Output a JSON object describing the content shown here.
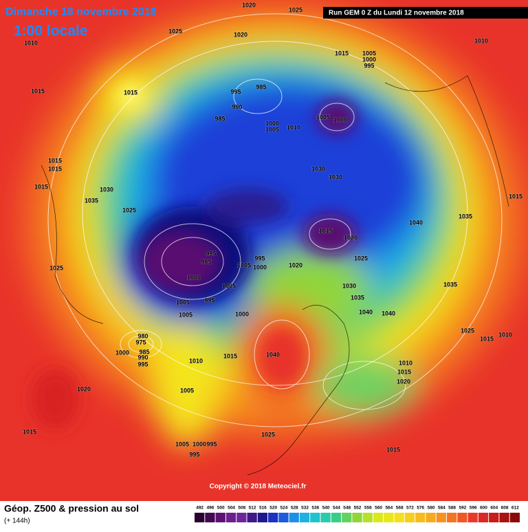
{
  "header": {
    "title": "Dimanche 18 novembre 2018",
    "time": "1:00 locale",
    "run": "Run GEM 0 Z du Lundi 12 novembre 2018"
  },
  "copyright": "Copyright © 2018 Meteociel.fr",
  "legend": {
    "title": "Géop. Z500 & pression au sol",
    "lead": "(+ 144h)",
    "ticks": [
      492,
      496,
      500,
      504,
      508,
      512,
      516,
      520,
      524,
      528,
      532,
      536,
      540,
      544,
      548,
      552,
      556,
      560,
      564,
      568,
      572,
      576,
      580,
      584,
      588,
      592,
      596,
      600,
      604,
      608,
      612
    ]
  },
  "isobar_labels": [
    1020,
    1025,
    1010,
    1025,
    1020,
    1015,
    1005,
    1000,
    995,
    1010,
    1015,
    1015,
    995,
    985,
    990,
    985,
    1000,
    1005,
    1010,
    1005,
    1000,
    1015,
    1015,
    1015,
    1030,
    1035,
    1030,
    1030,
    1015,
    1025,
    1040,
    1035,
    1015,
    1020,
    1025,
    1000,
    995,
    985,
    995,
    1000,
    1005,
    1020,
    1025,
    1005,
    1030,
    1035,
    1035,
    1005,
    995,
    1040,
    1040,
    1005,
    1000,
    1025,
    1015,
    1010,
    980,
    975,
    985,
    990,
    995,
    1000,
    1010,
    1015,
    1040,
    1010,
    1015,
    1020,
    1020,
    1005,
    1015,
    1025,
    1005,
    1000,
    995,
    995,
    1015
  ]
}
